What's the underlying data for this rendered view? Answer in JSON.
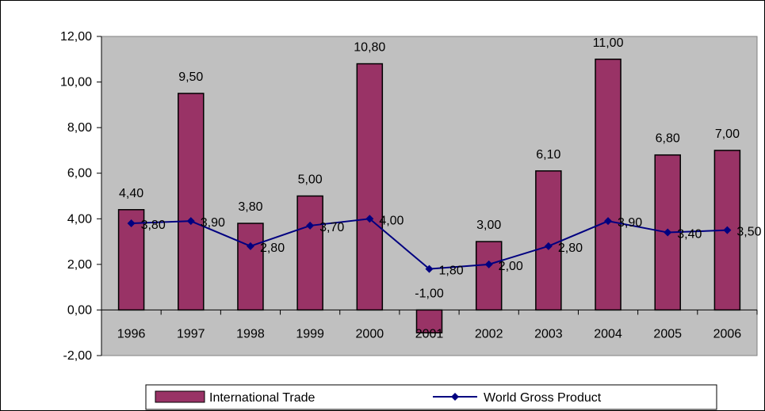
{
  "chart_data": {
    "type": "bar",
    "categories": [
      "1996",
      "1997",
      "1998",
      "1999",
      "2000",
      "2001",
      "2002",
      "2003",
      "2004",
      "2005",
      "2006"
    ],
    "series": [
      {
        "name": "International Trade",
        "type": "bar",
        "values": [
          4.4,
          9.5,
          3.8,
          5.0,
          10.8,
          -1.0,
          3.0,
          6.1,
          11.0,
          6.8,
          7.0
        ],
        "labels": [
          "4,40",
          "9,50",
          "3,80",
          "5,00",
          "10,80",
          "-1,00",
          "3,00",
          "6,10",
          "11,00",
          "6,80",
          "7,00"
        ]
      },
      {
        "name": "World Gross Product",
        "type": "line",
        "values": [
          3.8,
          3.9,
          2.8,
          3.7,
          4.0,
          1.8,
          2.0,
          2.8,
          3.9,
          3.4,
          3.5
        ],
        "labels": [
          "3,80",
          "3,90",
          "2,80",
          "3,70",
          "4,00",
          "1,80",
          "2,00",
          "2,80",
          "3,90",
          "3,40",
          "3,50"
        ]
      }
    ],
    "yticks": [
      "12,00",
      "10,00",
      "8,00",
      "6,00",
      "4,00",
      "2,00",
      "0,00",
      "-2,00"
    ],
    "ylim": [
      -2,
      12
    ],
    "grid": false,
    "legend_position": "bottom",
    "colors": {
      "bar": "#993366",
      "line": "#000080",
      "plot_bg": "#c0c0c0"
    }
  }
}
